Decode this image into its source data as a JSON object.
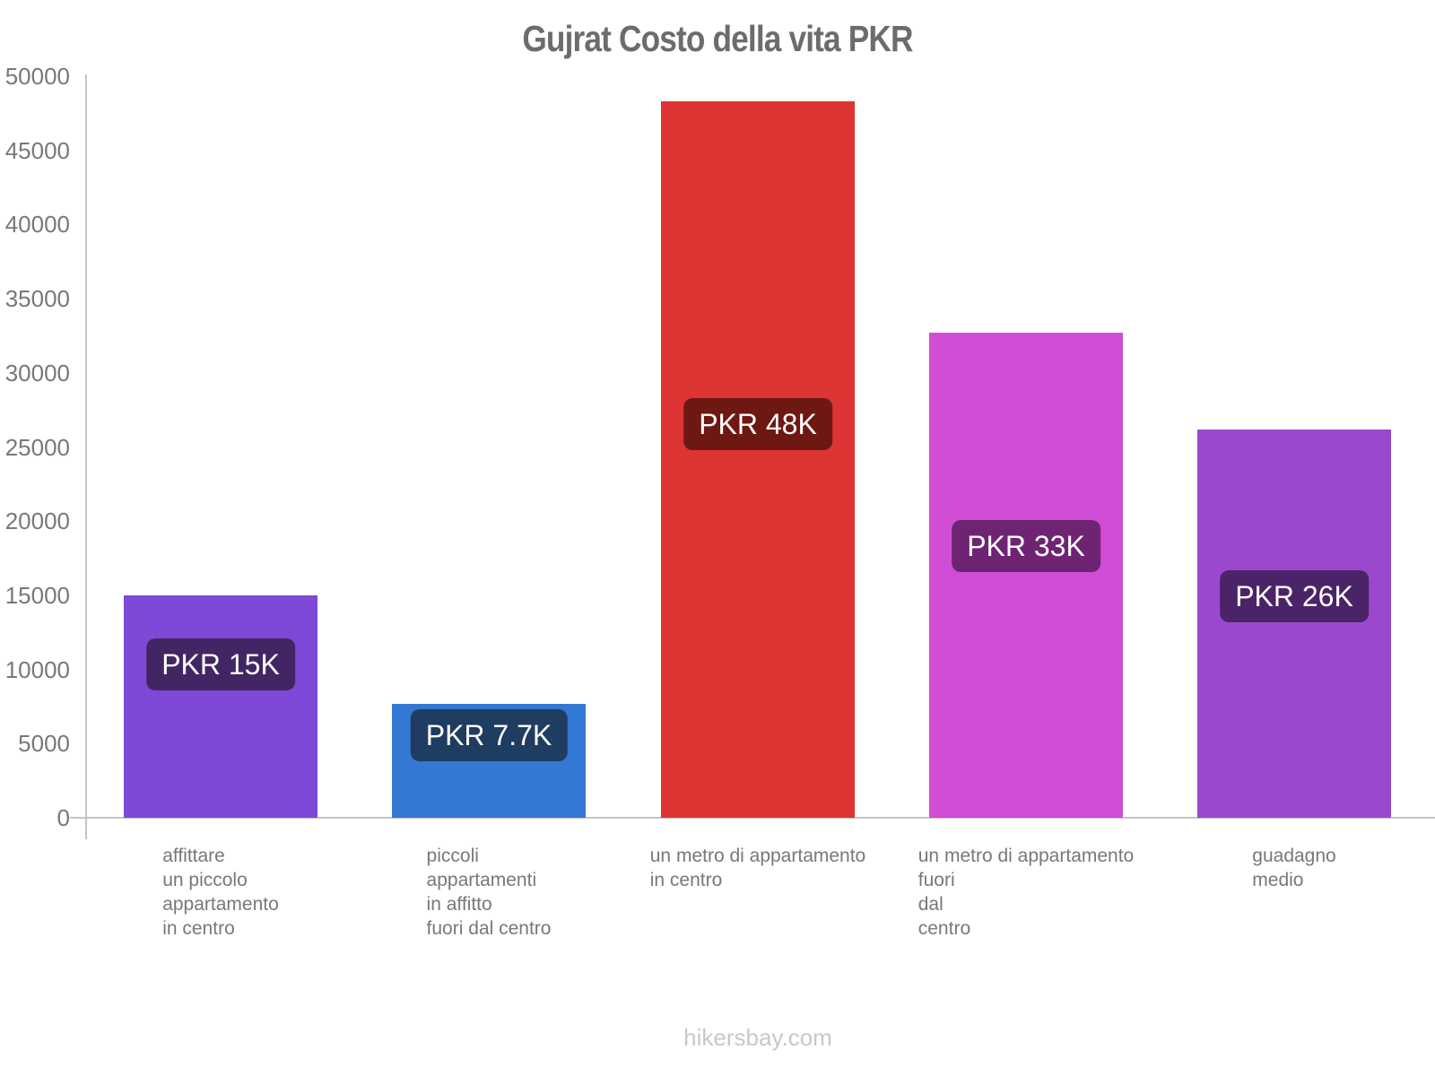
{
  "page": {
    "title": "Gujrat Costo della vita PKR",
    "footer": "hikersbay.com"
  },
  "chart_data": {
    "type": "bar",
    "title": "Gujrat Costo della vita PKR",
    "currency": "PKR",
    "ylim": [
      0,
      50000
    ],
    "ytick_step": 5000,
    "yticks": [
      0,
      5000,
      10000,
      15000,
      20000,
      25000,
      30000,
      35000,
      40000,
      45000,
      50000
    ],
    "grid": "off",
    "legend": "none",
    "categories": [
      "affittare un piccolo appartamento in centro",
      "piccoli appartamenti in affitto fuori dal centro",
      "un metro di appartamento in centro",
      "un metro di appartamento fuori dal centro",
      "guadagno medio"
    ],
    "category_lines": [
      [
        "affittare",
        "un piccolo",
        "appartamento",
        "in centro"
      ],
      [
        "piccoli",
        "appartamenti",
        "in affitto",
        "fuori dal centro"
      ],
      [
        "un metro di appartamento",
        "in centro"
      ],
      [
        "un metro di appartamento",
        "fuori",
        "dal",
        "centro"
      ],
      [
        "guadagno",
        "medio"
      ]
    ],
    "values": [
      15000,
      7700,
      48300,
      32700,
      26200
    ],
    "bar_value_labels": [
      "PKR 15K",
      "PKR 7.7K",
      "PKR 48K",
      "PKR 33K",
      "PKR 26K"
    ],
    "bar_colors": [
      "#7E49D6",
      "#3378D2",
      "#DC3534",
      "#D14DD6",
      "#9A48CE"
    ],
    "value_label_bg": [
      "#422663",
      "#1F3C61",
      "#6E1813",
      "#6E2472",
      "#4B2368"
    ],
    "axis_color": "#C4C4C4",
    "text_color": "#787878",
    "title_color": "#6C6C6C",
    "footer_color": "#C8C8C8"
  }
}
